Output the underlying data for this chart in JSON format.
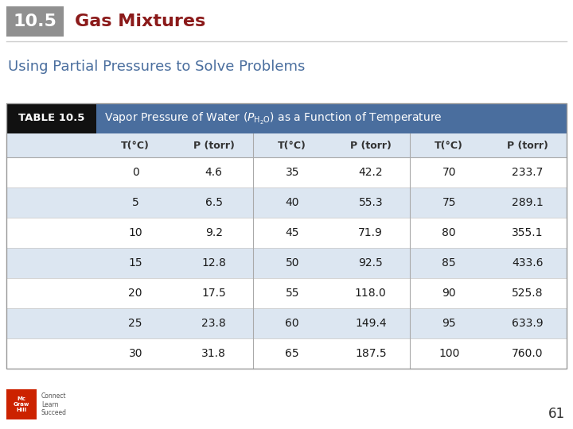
{
  "section_number": "10.5",
  "section_title": "Gas Mixtures",
  "subtitle": "Using Partial Pressures to Solve Problems",
  "table_label": "TABLE 10.5",
  "col_headers": [
    "T(°C)",
    "P (torr)",
    "T(°C)",
    "P (torr)",
    "T(°C)",
    "P (torr)"
  ],
  "col1_T": [
    "0",
    "5",
    "10",
    "15",
    "20",
    "25",
    "30"
  ],
  "col1_P": [
    "4.6",
    "6.5",
    "9.2",
    "12.8",
    "17.5",
    "23.8",
    "31.8"
  ],
  "col2_T": [
    "35",
    "40",
    "45",
    "50",
    "55",
    "60",
    "65"
  ],
  "col2_P": [
    "42.2",
    "55.3",
    "71.9",
    "92.5",
    "118.0",
    "149.4",
    "187.5"
  ],
  "col3_T": [
    "70",
    "75",
    "80",
    "85",
    "90",
    "95",
    "100"
  ],
  "col3_P": [
    "233.7",
    "289.1",
    "355.1",
    "433.6",
    "525.8",
    "633.9",
    "760.0"
  ],
  "page_number": "61",
  "bg_color": "#ffffff",
  "header_bg_dark": "#111111",
  "header_bg_blue": "#4a6e9e",
  "row_alt_color": "#dce6f1",
  "row_normal_color": "#ffffff",
  "col_hdr_bg": "#dce6f1",
  "section_num_bg": "#909090",
  "section_title_color": "#8b1a1a",
  "subtitle_color": "#4a6e9e",
  "logo_color": "#cc2200"
}
